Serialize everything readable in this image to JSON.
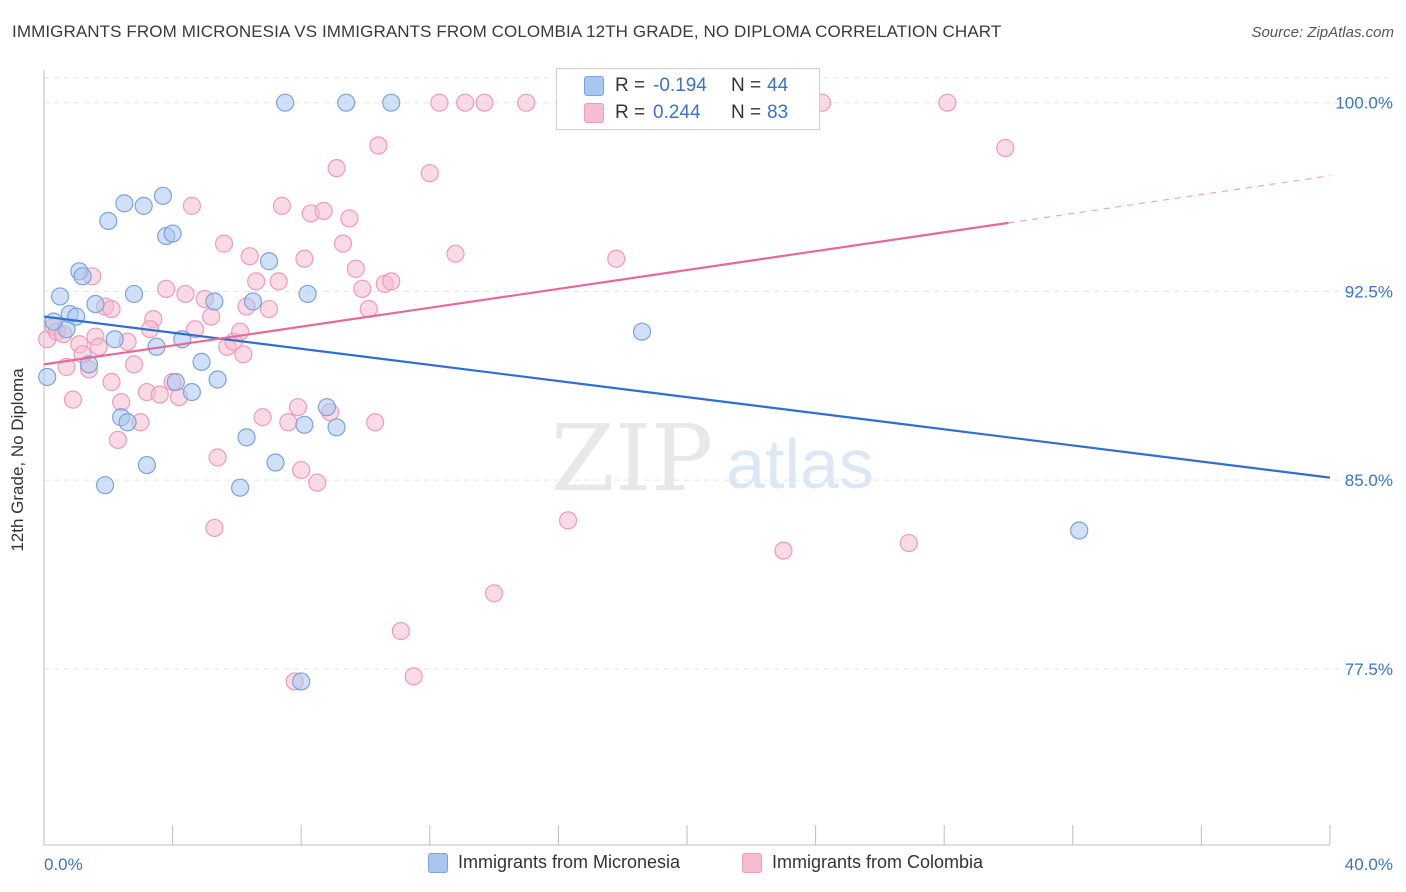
{
  "header": {
    "title": "IMMIGRANTS FROM MICRONESIA VS IMMIGRANTS FROM COLOMBIA 12TH GRADE, NO DIPLOMA CORRELATION CHART",
    "source": "Source: ZipAtlas.com"
  },
  "watermark": {
    "zip": "ZIP",
    "atlas": "atlas"
  },
  "legend_top": {
    "rows": [
      {
        "r_label": "R =",
        "r_value": "-0.194",
        "n_label": "N =",
        "n_value": "44"
      },
      {
        "r_label": "R =",
        "r_value": "0.244",
        "n_label": "N =",
        "n_value": "83"
      }
    ]
  },
  "legend_bottom": {
    "items": [
      {
        "label": "Immigrants from Micronesia"
      },
      {
        "label": "Immigrants from Colombia"
      }
    ]
  },
  "colors": {
    "blue_fill": "#a9c6ef",
    "blue_stroke": "#7ba3dd",
    "blue_line": "#2f6fce",
    "pink_fill": "#f6bcd0",
    "pink_stroke": "#ee9bb8",
    "pink_line": "#e8689a",
    "tick_label": "#3a73c9",
    "grid": "#e3e3e3"
  },
  "chart_data": {
    "type": "scatter",
    "title": "IMMIGRANTS FROM MICRONESIA VS IMMIGRANTS FROM COLOMBIA 12TH GRADE, NO DIPLOMA CORRELATION CHART",
    "xlabel": "",
    "ylabel": "12th Grade, No Diploma",
    "xlim": [
      0,
      40
    ],
    "ylim": [
      70.5,
      101.3
    ],
    "x_tick_labels": [
      "0.0%",
      "40.0%"
    ],
    "y_ticks": [
      77.5,
      85.0,
      92.5,
      100.0
    ],
    "y_tick_labels": [
      "77.5%",
      "85.0%",
      "92.5%",
      "100.0%"
    ],
    "grid": true,
    "legend": "top-center",
    "series": [
      {
        "name": "Immigrants from Micronesia",
        "color": "#a9c6ef",
        "r": -0.194,
        "n": 44,
        "trend": {
          "x0": 0,
          "y0": 91.5,
          "x1": 40,
          "y1": 85.1,
          "solid_until": 40
        },
        "points": [
          [
            0.1,
            89.1
          ],
          [
            0.5,
            92.3
          ],
          [
            0.7,
            91.0
          ],
          [
            0.8,
            91.6
          ],
          [
            1.0,
            91.5
          ],
          [
            1.1,
            93.3
          ],
          [
            1.2,
            93.1
          ],
          [
            1.4,
            89.6
          ],
          [
            1.6,
            92.0
          ],
          [
            1.9,
            84.8
          ],
          [
            2.2,
            90.6
          ],
          [
            2.4,
            87.5
          ],
          [
            2.5,
            96.0
          ],
          [
            2.6,
            87.3
          ],
          [
            2.8,
            92.4
          ],
          [
            3.1,
            95.9
          ],
          [
            3.2,
            85.6
          ],
          [
            3.5,
            90.3
          ],
          [
            3.7,
            96.3
          ],
          [
            3.8,
            94.7
          ],
          [
            4.0,
            94.8
          ],
          [
            4.1,
            88.9
          ],
          [
            4.3,
            90.6
          ],
          [
            4.6,
            88.5
          ],
          [
            4.9,
            89.7
          ],
          [
            5.3,
            92.1
          ],
          [
            5.4,
            89.0
          ],
          [
            6.1,
            84.7
          ],
          [
            6.3,
            86.7
          ],
          [
            6.5,
            92.1
          ],
          [
            7.0,
            93.7
          ],
          [
            7.2,
            85.7
          ],
          [
            7.5,
            100.0
          ],
          [
            8.0,
            77.0
          ],
          [
            8.1,
            87.2
          ],
          [
            8.2,
            92.4
          ],
          [
            8.8,
            87.9
          ],
          [
            9.1,
            87.1
          ],
          [
            9.4,
            100.0
          ],
          [
            10.8,
            100.0
          ],
          [
            18.6,
            90.9
          ],
          [
            32.2,
            83.0
          ],
          [
            0.3,
            91.3
          ],
          [
            2.0,
            95.3
          ]
        ]
      },
      {
        "name": "Immigrants from Colombia",
        "color": "#f6bcd0",
        "r": 0.244,
        "n": 83,
        "trend": {
          "x0": 0,
          "y0": 89.6,
          "x1": 40,
          "y1": 97.1,
          "solid_until": 30
        },
        "points": [
          [
            0.1,
            90.6
          ],
          [
            0.3,
            91.1
          ],
          [
            0.4,
            90.9
          ],
          [
            0.6,
            90.8
          ],
          [
            0.9,
            88.2
          ],
          [
            1.1,
            90.4
          ],
          [
            1.2,
            90.0
          ],
          [
            1.4,
            89.4
          ],
          [
            1.6,
            90.7
          ],
          [
            1.7,
            90.3
          ],
          [
            1.9,
            91.9
          ],
          [
            2.1,
            88.9
          ],
          [
            2.3,
            86.6
          ],
          [
            2.4,
            88.1
          ],
          [
            2.6,
            90.5
          ],
          [
            2.8,
            89.6
          ],
          [
            3.0,
            87.3
          ],
          [
            3.2,
            88.5
          ],
          [
            3.4,
            91.4
          ],
          [
            3.6,
            88.4
          ],
          [
            3.8,
            92.6
          ],
          [
            4.0,
            88.9
          ],
          [
            4.2,
            88.3
          ],
          [
            4.4,
            92.4
          ],
          [
            4.6,
            95.9
          ],
          [
            4.7,
            91.0
          ],
          [
            5.0,
            92.2
          ],
          [
            5.2,
            91.5
          ],
          [
            5.3,
            83.1
          ],
          [
            5.4,
            85.9
          ],
          [
            5.6,
            94.4
          ],
          [
            5.7,
            90.3
          ],
          [
            5.9,
            90.5
          ],
          [
            6.1,
            90.9
          ],
          [
            6.3,
            91.9
          ],
          [
            6.4,
            93.9
          ],
          [
            6.6,
            92.9
          ],
          [
            6.8,
            87.5
          ],
          [
            7.0,
            91.8
          ],
          [
            7.3,
            92.9
          ],
          [
            7.4,
            95.9
          ],
          [
            7.6,
            87.3
          ],
          [
            7.8,
            77.0
          ],
          [
            7.9,
            87.9
          ],
          [
            8.0,
            85.4
          ],
          [
            8.1,
            93.8
          ],
          [
            8.3,
            95.6
          ],
          [
            8.5,
            84.9
          ],
          [
            8.7,
            95.7
          ],
          [
            8.9,
            87.7
          ],
          [
            9.1,
            97.4
          ],
          [
            9.3,
            94.4
          ],
          [
            9.5,
            95.4
          ],
          [
            9.7,
            93.4
          ],
          [
            9.9,
            92.6
          ],
          [
            10.1,
            91.8
          ],
          [
            10.3,
            87.3
          ],
          [
            10.4,
            98.3
          ],
          [
            10.6,
            92.8
          ],
          [
            10.8,
            92.9
          ],
          [
            11.1,
            79.0
          ],
          [
            11.5,
            77.2
          ],
          [
            12.0,
            97.2
          ],
          [
            12.8,
            94.0
          ],
          [
            13.1,
            100.0
          ],
          [
            13.7,
            100.0
          ],
          [
            14.0,
            80.5
          ],
          [
            15.0,
            100.0
          ],
          [
            16.3,
            83.4
          ],
          [
            17.8,
            93.8
          ],
          [
            19.1,
            100.0
          ],
          [
            22.4,
            100.0
          ],
          [
            23.0,
            82.2
          ],
          [
            24.2,
            100.0
          ],
          [
            26.9,
            82.5
          ],
          [
            28.1,
            100.0
          ],
          [
            29.9,
            98.2
          ],
          [
            12.3,
            100.0
          ],
          [
            0.7,
            89.5
          ],
          [
            1.5,
            93.1
          ],
          [
            3.3,
            91.0
          ],
          [
            6.2,
            90.0
          ],
          [
            2.1,
            91.8
          ]
        ]
      }
    ]
  }
}
